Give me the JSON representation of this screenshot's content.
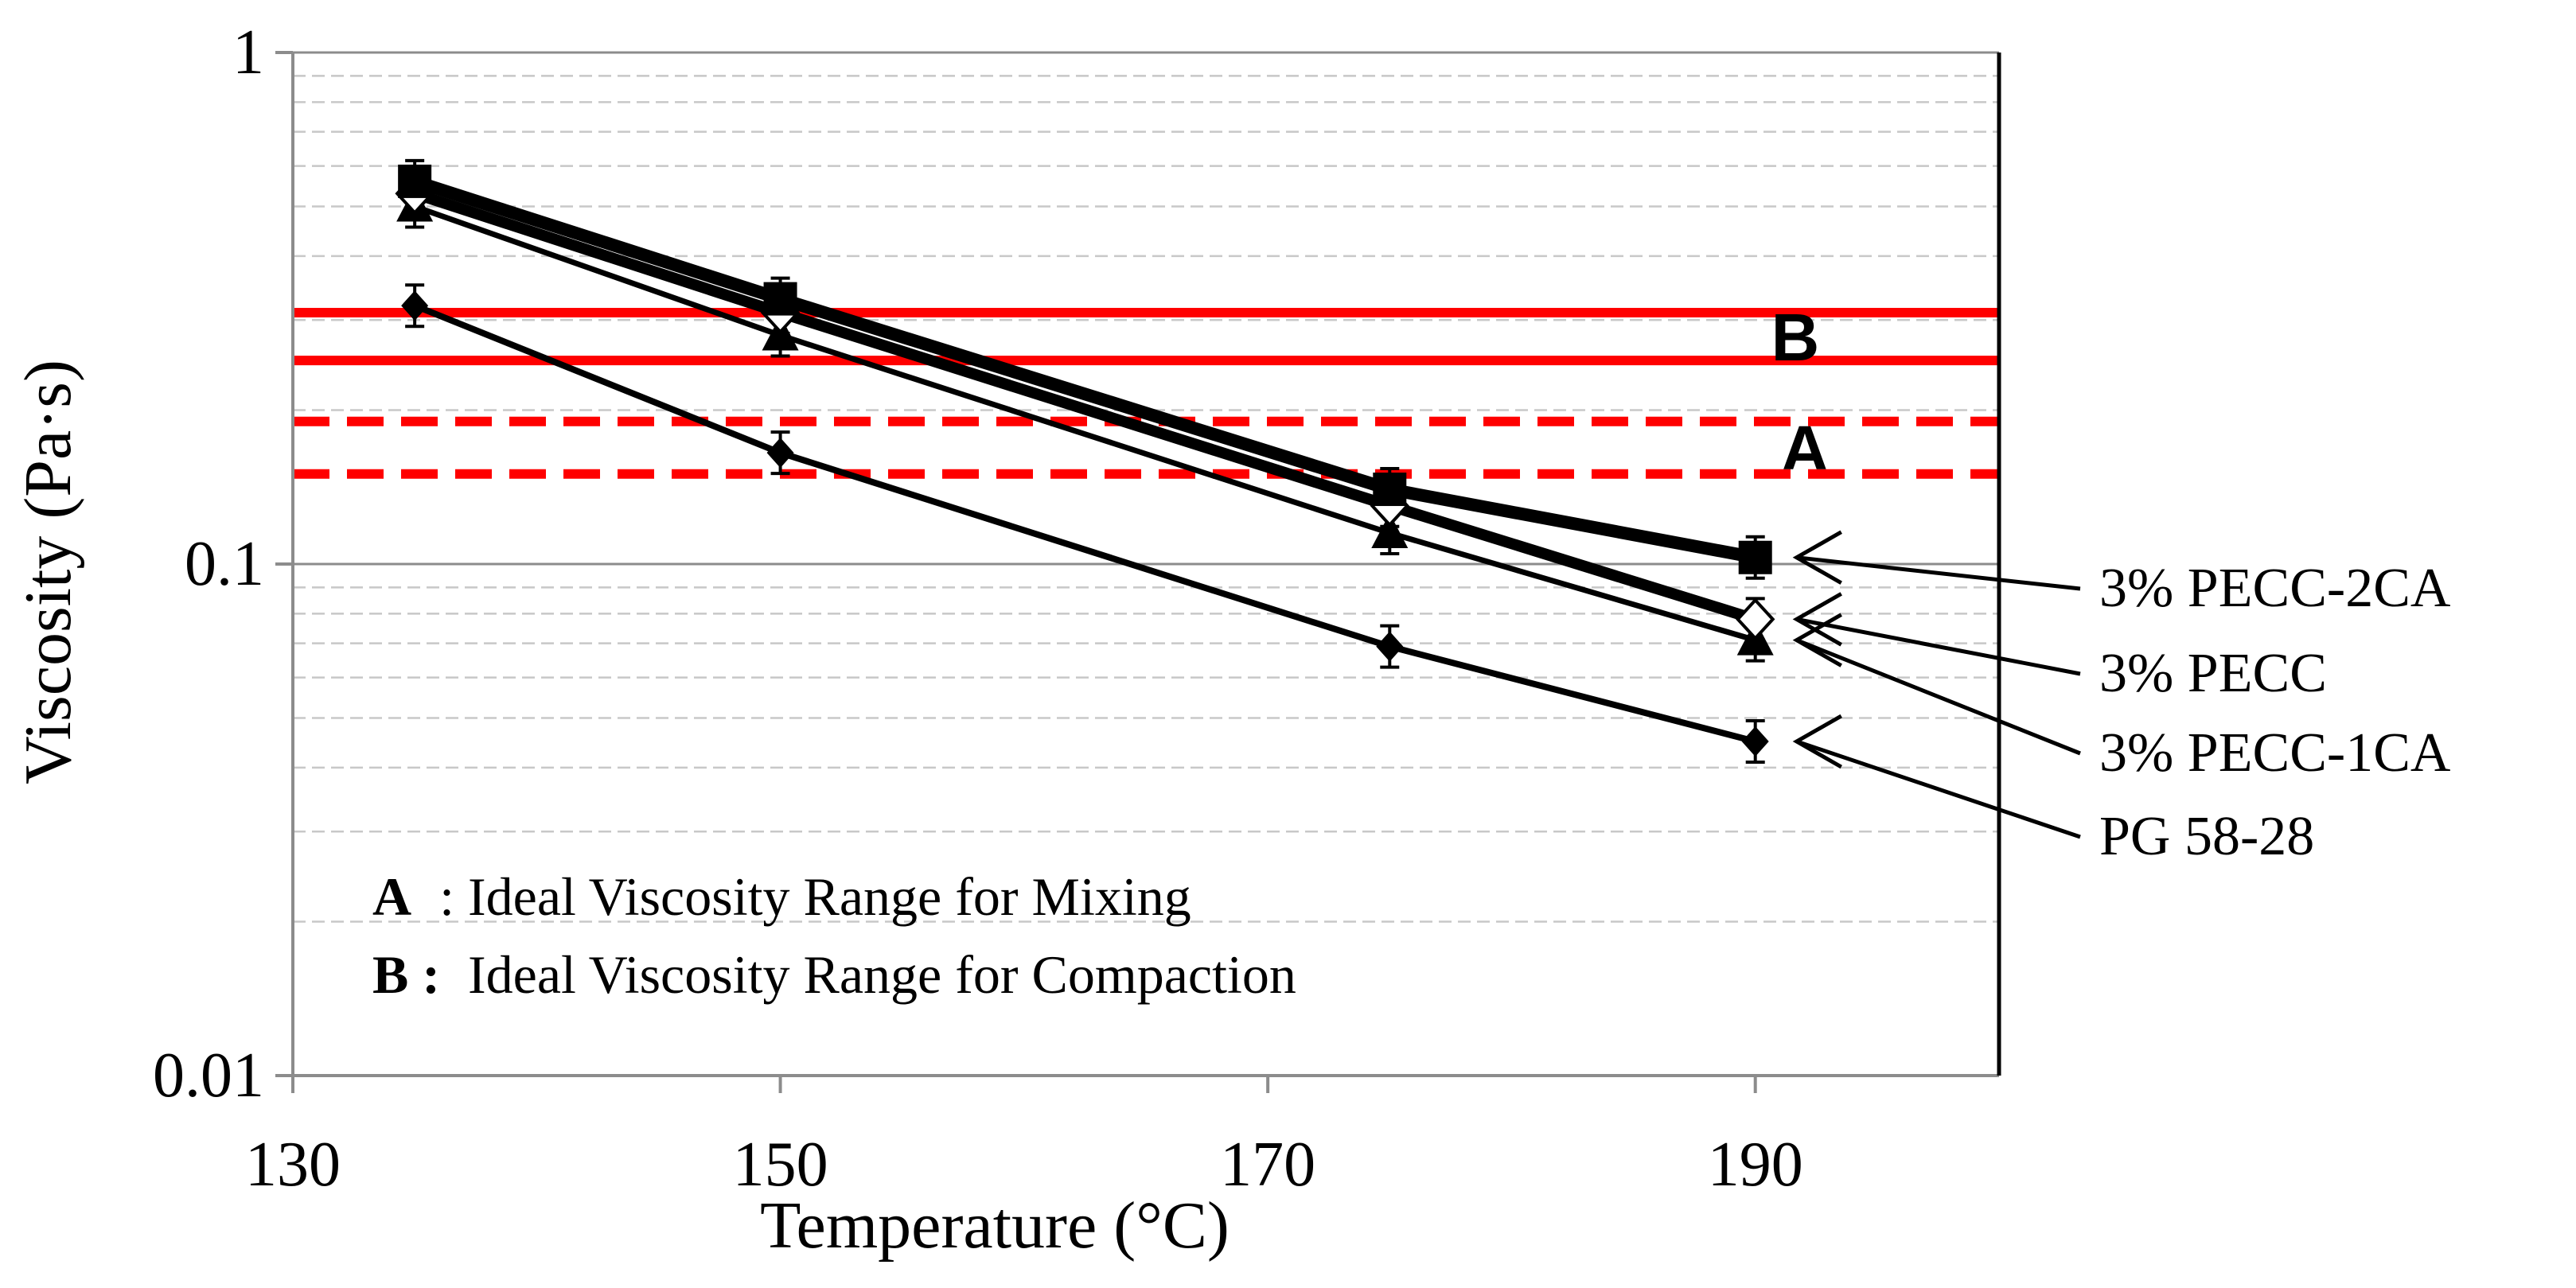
{
  "chart_data": {
    "type": "line",
    "title": "",
    "xlabel": "Temperature (°C)",
    "ylabel": "Viscosity (Pa·s)",
    "xlim": [
      130,
      200
    ],
    "ylim": [
      0.01,
      1
    ],
    "yscale": "log",
    "x_ticks": [
      "130",
      "150",
      "170",
      "190"
    ],
    "y_ticks": [
      "0.01",
      "0.1",
      "1"
    ],
    "x": [
      135,
      150,
      175,
      190
    ],
    "series": [
      {
        "name": "3% PECC-2CA",
        "marker": "square",
        "values": [
          0.56,
          0.33,
          0.14,
          0.103
        ]
      },
      {
        "name": "3% PECC",
        "marker": "diamond-open",
        "values": [
          0.53,
          0.31,
          0.13,
          0.078
        ]
      },
      {
        "name": "3% PECC-1CA",
        "marker": "triangle",
        "values": [
          0.5,
          0.28,
          0.115,
          0.071
        ]
      },
      {
        "name": "PG 58-28",
        "marker": "diamond",
        "values": [
          0.32,
          0.165,
          0.069,
          0.045
        ]
      }
    ],
    "ranges": [
      {
        "tag": "B",
        "bold_prefix": "B :",
        "description": "Ideal Viscosity Range for Compaction",
        "low": 0.25,
        "high": 0.31,
        "style": "solid",
        "color": "#ff0000"
      },
      {
        "tag": "A",
        "bold_prefix": "A",
        "description": ": Ideal Viscosity Range for Mixing",
        "low": 0.15,
        "high": 0.19,
        "style": "dashed",
        "color": "#ff0000"
      }
    ],
    "gridlines": "horizontal",
    "colors": {
      "series": "#000000",
      "range": "#ff0000",
      "grid_major": "#8c8c8c",
      "grid_minor": "#c8c8c8"
    }
  }
}
